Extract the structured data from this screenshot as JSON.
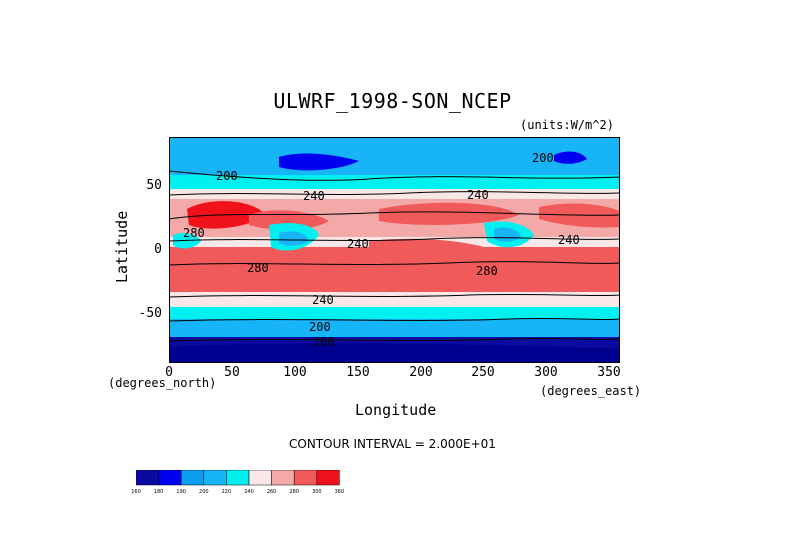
{
  "chart_data": {
    "type": "heatmap",
    "title": "ULWRF_1998-SON_NCEP",
    "units_label": "(units:W/m^2)",
    "xlabel": "Longitude",
    "ylabel": "Latitude",
    "x_units_label": "(degrees_east)",
    "y_units_label": "(degrees_north)",
    "xlim": [
      0,
      360
    ],
    "ylim": [
      -90,
      90
    ],
    "x_ticks": [
      "0",
      "50",
      "100",
      "150",
      "200",
      "250",
      "300",
      "350"
    ],
    "y_ticks": [
      "50",
      "0",
      "-50"
    ],
    "contour_interval_text": "CONTOUR INTERVAL = 2.000E+01",
    "contour_labels": [
      "200",
      "240",
      "240",
      "280",
      "240",
      "240",
      "280",
      "280",
      "240",
      "200",
      "160",
      "200",
      "240"
    ],
    "colorbar_levels": [
      "160",
      "180",
      "190",
      "200",
      "220",
      "240",
      "260",
      "280",
      "300",
      "360"
    ],
    "colorbar_colors": [
      "#0a0aa0",
      "#0000f0",
      "#0c9ef0",
      "#18b4f8",
      "#00f0f0",
      "#fbe7e7",
      "#f4a9a9",
      "#f05a5a",
      "#f0111a"
    ],
    "latitude_bands": [
      {
        "lat_range": [
          70,
          90
        ],
        "value": 200
      },
      {
        "lat_range": [
          50,
          70
        ],
        "value": 220
      },
      {
        "lat_range": [
          40,
          50
        ],
        "value": 240
      },
      {
        "lat_range": [
          10,
          40
        ],
        "value": 270
      },
      {
        "lat_range": [
          -10,
          10
        ],
        "value": 250
      },
      {
        "lat_range": [
          -40,
          -10
        ],
        "value": 275
      },
      {
        "lat_range": [
          -50,
          -40
        ],
        "value": 240
      },
      {
        "lat_range": [
          -60,
          -50
        ],
        "value": 220
      },
      {
        "lat_range": [
          -70,
          -60
        ],
        "value": 200
      },
      {
        "lat_range": [
          -90,
          -70
        ],
        "value": 170
      }
    ]
  }
}
